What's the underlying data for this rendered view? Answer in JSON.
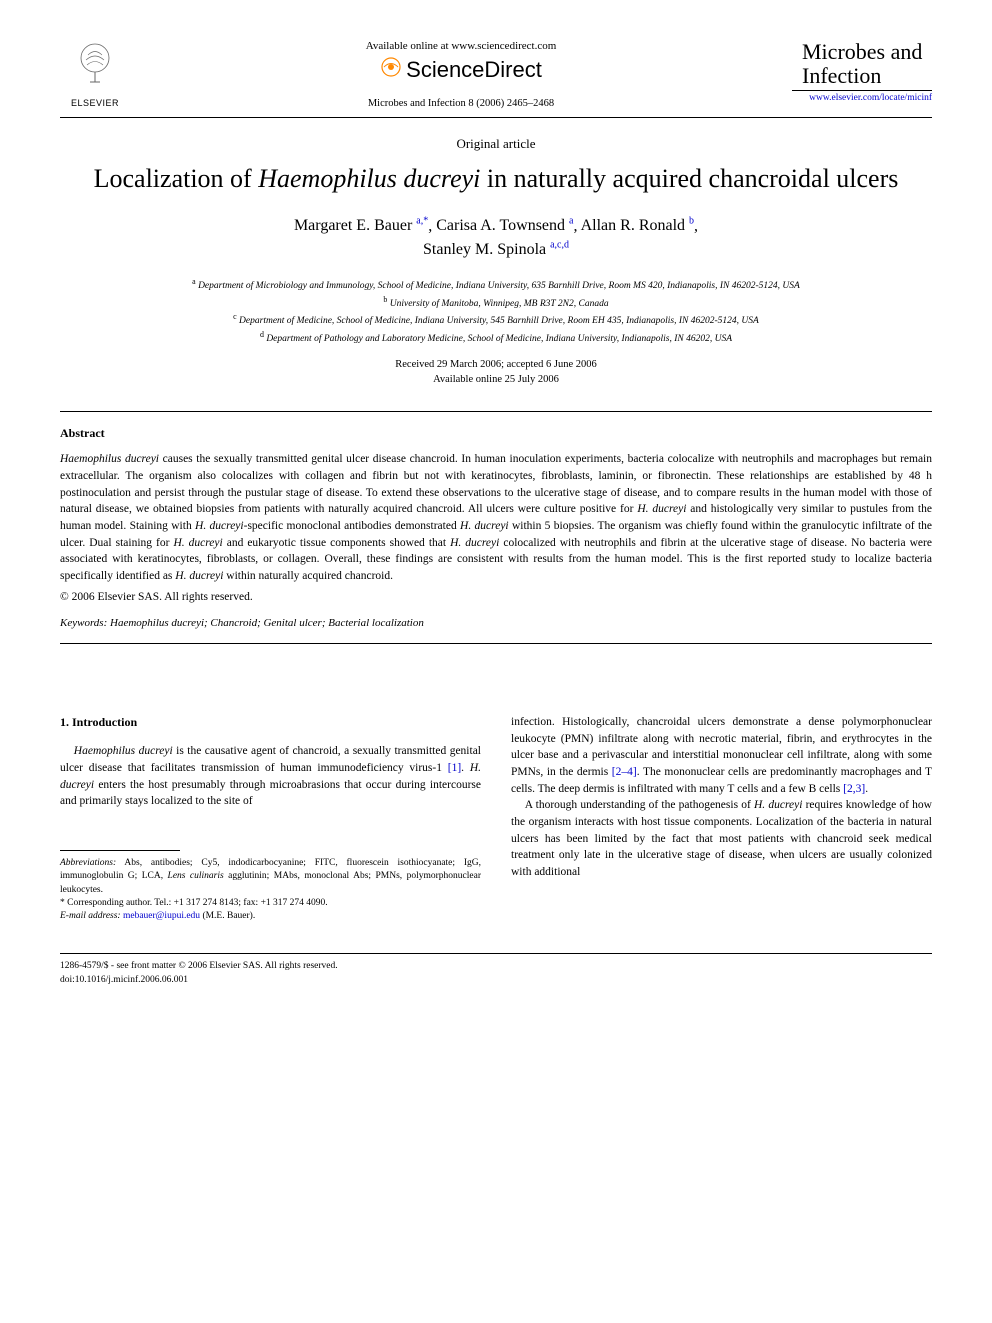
{
  "header": {
    "publisher_name": "ELSEVIER",
    "available_text": "Available online at www.sciencedirect.com",
    "sd_name": "ScienceDirect",
    "citation": "Microbes and Infection 8 (2006) 2465–2468",
    "journal_title_line1": "Microbes and",
    "journal_title_line2": "Infection",
    "journal_link": "www.elsevier.com/locate/micinf"
  },
  "article": {
    "type": "Original article",
    "title_pre": "Localization of ",
    "title_italic": "Haemophilus ducreyi",
    "title_post": " in naturally acquired chancroidal ulcers"
  },
  "authors": [
    {
      "name": "Margaret E. Bauer",
      "affil": "a,",
      "star": "*"
    },
    {
      "name": "Carisa A. Townsend",
      "affil": "a"
    },
    {
      "name": "Allan R. Ronald",
      "affil": "b"
    },
    {
      "name": "Stanley M. Spinola",
      "affil": "a,c,d"
    }
  ],
  "affiliations": [
    {
      "sup": "a",
      "text": "Department of Microbiology and Immunology, School of Medicine, Indiana University, 635 Barnhill Drive, Room MS 420, Indianapolis, IN 46202-5124, USA"
    },
    {
      "sup": "b",
      "text": "University of Manitoba, Winnipeg, MB R3T 2N2, Canada"
    },
    {
      "sup": "c",
      "text": "Department of Medicine, School of Medicine, Indiana University, 545 Barnhill Drive, Room EH 435, Indianapolis, IN 46202-5124, USA"
    },
    {
      "sup": "d",
      "text": "Department of Pathology and Laboratory Medicine, School of Medicine, Indiana University, Indianapolis, IN 46202, USA"
    }
  ],
  "dates": {
    "received": "Received 29 March 2006; accepted 6 June 2006",
    "online": "Available online 25 July 2006"
  },
  "abstract": {
    "heading": "Abstract",
    "text_parts": [
      {
        "italic": true,
        "t": "Haemophilus ducreyi"
      },
      {
        "italic": false,
        "t": " causes the sexually transmitted genital ulcer disease chancroid. In human inoculation experiments, bacteria colocalize with neutrophils and macrophages but remain extracellular. The organism also colocalizes with collagen and fibrin but not with keratinocytes, fibroblasts, laminin, or fibronectin. These relationships are established by 48 h postinoculation and persist through the pustular stage of disease. To extend these observations to the ulcerative stage of disease, and to compare results in the human model with those of natural disease, we obtained biopsies from patients with naturally acquired chancroid. All ulcers were culture positive for "
      },
      {
        "italic": true,
        "t": "H. ducreyi"
      },
      {
        "italic": false,
        "t": " and histologically very similar to pustules from the human model. Staining with "
      },
      {
        "italic": true,
        "t": "H. ducreyi"
      },
      {
        "italic": false,
        "t": "-specific monoclonal antibodies demonstrated "
      },
      {
        "italic": true,
        "t": "H. ducreyi"
      },
      {
        "italic": false,
        "t": " within 5 biopsies. The organism was chiefly found within the granulocytic infiltrate of the ulcer. Dual staining for "
      },
      {
        "italic": true,
        "t": "H. ducreyi"
      },
      {
        "italic": false,
        "t": " and eukaryotic tissue components showed that "
      },
      {
        "italic": true,
        "t": "H. ducreyi"
      },
      {
        "italic": false,
        "t": " colocalized with neutrophils and fibrin at the ulcerative stage of disease. No bacteria were associated with keratinocytes, fibroblasts, or collagen. Overall, these findings are consistent with results from the human model. This is the first reported study to localize bacteria specifically identified as "
      },
      {
        "italic": true,
        "t": "H. ducreyi"
      },
      {
        "italic": false,
        "t": " within naturally acquired chancroid."
      }
    ],
    "copyright": "© 2006 Elsevier SAS. All rights reserved."
  },
  "keywords": {
    "label": "Keywords:",
    "items": "Haemophilus ducreyi; Chancroid; Genital ulcer; Bacterial localization"
  },
  "body": {
    "section_heading": "1. Introduction",
    "left_para_parts": [
      {
        "italic": true,
        "t": "Haemophilus ducreyi"
      },
      {
        "italic": false,
        "t": " is the causative agent of chancroid, a sexually transmitted genital ulcer disease that facilitates transmission of human immunodeficiency virus-1 "
      },
      {
        "ref": true,
        "t": "[1]"
      },
      {
        "italic": false,
        "t": ". "
      },
      {
        "italic": true,
        "t": "H. ducreyi"
      },
      {
        "italic": false,
        "t": " enters the host presumably through microabrasions that occur during intercourse and primarily stays localized to the site of"
      }
    ],
    "right_para1_parts": [
      {
        "italic": false,
        "t": "infection. Histologically, chancroidal ulcers demonstrate a dense polymorphonuclear leukocyte (PMN) infiltrate along with necrotic material, fibrin, and erythrocytes in the ulcer base and a perivascular and interstitial mononuclear cell infiltrate, along with some PMNs, in the dermis "
      },
      {
        "ref": true,
        "t": "[2–4]"
      },
      {
        "italic": false,
        "t": ". The mononuclear cells are predominantly macrophages and T cells. The deep dermis is infiltrated with many T cells and a few B cells "
      },
      {
        "ref": true,
        "t": "[2,3]"
      },
      {
        "italic": false,
        "t": "."
      }
    ],
    "right_para2_parts": [
      {
        "italic": false,
        "t": "A thorough understanding of the pathogenesis of "
      },
      {
        "italic": true,
        "t": "H. ducreyi"
      },
      {
        "italic": false,
        "t": " requires knowledge of how the organism interacts with host tissue components. Localization of the bacteria in natural ulcers has been limited by the fact that most patients with chancroid seek medical treatment only late in the ulcerative stage of disease, when ulcers are usually colonized with additional"
      }
    ]
  },
  "footnotes": {
    "abbrev_label": "Abbreviations:",
    "abbrev_text": " Abs, antibodies; Cy5, indodicarbocyanine; FITC, fluorescein isothiocyanate; IgG, immunoglobulin G; LCA, ",
    "abbrev_italic": "Lens culinaris",
    "abbrev_text2": " agglutinin; MAbs, monoclonal Abs; PMNs, polymorphonuclear leukocytes.",
    "corresp": "* Corresponding author. Tel.: +1 317 274 8143; fax: +1 317 274 4090.",
    "email_label": "E-mail address:",
    "email": "mebauer@iupui.edu",
    "email_person": " (M.E. Bauer)."
  },
  "footer": {
    "line1": "1286-4579/$ - see front matter © 2006 Elsevier SAS. All rights reserved.",
    "line2": "doi:10.1016/j.micinf.2006.06.001"
  },
  "colors": {
    "link": "#0000cc",
    "accent": "#ff8800",
    "text": "#000000",
    "bg": "#ffffff"
  },
  "typography": {
    "title_fontsize": 26,
    "author_fontsize": 16,
    "body_fontsize": 11.5,
    "abstract_fontsize": 11.5,
    "footnote_fontsize": 9.5
  }
}
